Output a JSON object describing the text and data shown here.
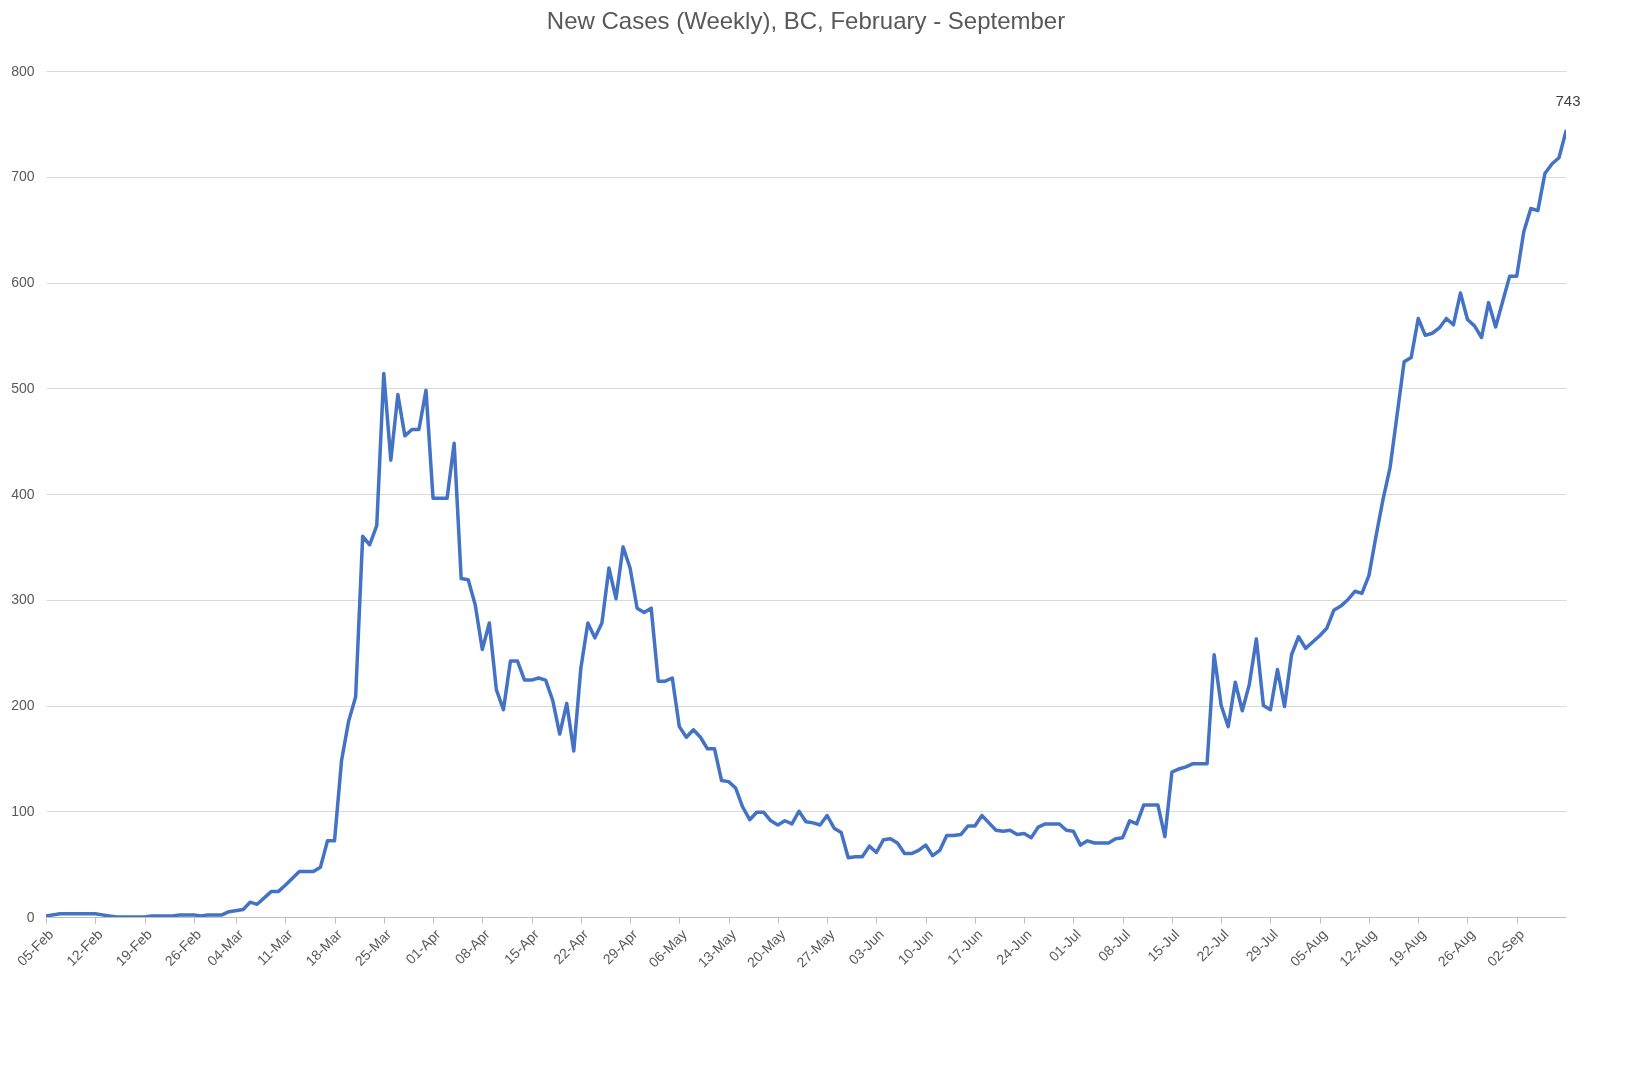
{
  "chart_data": {
    "type": "line",
    "title": "New Cases (Weekly), BC, February - September",
    "x": [
      "--02-05",
      "--02-07",
      "--02-12",
      "--02-13",
      "--02-15",
      "--02-19",
      "--02-20",
      "--02-23",
      "--02-24",
      "--02-26",
      "--02-27",
      "--02-28",
      "--03-02",
      "--03-03",
      "--03-05",
      "--03-06",
      "--03-07",
      "--03-09",
      "--03-10",
      "--03-11",
      "--03-13",
      "--03-14",
      "--03-15",
      "--03-16",
      "--03-17",
      "--03-18",
      "--03-19",
      "--03-20",
      "--03-21",
      "--03-22",
      "--03-23",
      "--03-24",
      "--03-25",
      "--03-26",
      "--03-27",
      "--03-28",
      "--03-29",
      "--03-30",
      "--03-31",
      "--04-01",
      "--04-02",
      "--04-03",
      "--04-04",
      "--04-05",
      "--04-06",
      "--04-07",
      "--04-08",
      "--04-09",
      "--04-10",
      "--04-11",
      "--04-12",
      "--04-13",
      "--04-14",
      "--04-15",
      "--04-16",
      "--04-17",
      "--04-18",
      "--04-19",
      "--04-20",
      "--04-21",
      "--04-22",
      "--04-23",
      "--04-24",
      "--04-25",
      "--04-26",
      "--04-27",
      "--04-28",
      "--04-29",
      "--04-30",
      "--05-01",
      "--05-02",
      "--05-03",
      "--05-04",
      "--05-05",
      "--05-06",
      "--05-07",
      "--05-08",
      "--05-09",
      "--05-10",
      "--05-11",
      "--05-12",
      "--05-13",
      "--05-14",
      "--05-15",
      "--05-16",
      "--05-17",
      "--05-18",
      "--05-19",
      "--05-20",
      "--05-21",
      "--05-22",
      "--05-23",
      "--05-24",
      "--05-25",
      "--05-26",
      "--05-27",
      "--05-28",
      "--05-29",
      "--05-30",
      "--05-31",
      "--06-01",
      "--06-02",
      "--06-03",
      "--06-04",
      "--06-05",
      "--06-06",
      "--06-07",
      "--06-08",
      "--06-09",
      "--06-10",
      "--06-11",
      "--06-12",
      "--06-13",
      "--06-14",
      "--06-15",
      "--06-16",
      "--06-17",
      "--06-18",
      "--06-19",
      "--06-20",
      "--06-21",
      "--06-22",
      "--06-23",
      "--06-24",
      "--06-25",
      "--06-26",
      "--06-27",
      "--06-28",
      "--06-29",
      "--06-30",
      "--07-01",
      "--07-02",
      "--07-03",
      "--07-04",
      "--07-05",
      "--07-06",
      "--07-07",
      "--07-08",
      "--07-09",
      "--07-10",
      "--07-11",
      "--07-12",
      "--07-13",
      "--07-14",
      "--07-15",
      "--07-16",
      "--07-17",
      "--07-18",
      "--07-19",
      "--07-20",
      "--07-21",
      "--07-22",
      "--07-23",
      "--07-24",
      "--07-25",
      "--07-26",
      "--07-27",
      "--07-28",
      "--07-29",
      "--07-30",
      "--07-31",
      "--08-01",
      "--08-02",
      "--08-03",
      "--08-04",
      "--08-05",
      "--08-06",
      "--08-07",
      "--08-08",
      "--08-09",
      "--08-10",
      "--08-11",
      "--08-12",
      "--08-13",
      "--08-14",
      "--08-15",
      "--08-16",
      "--08-17",
      "--08-18",
      "--08-19",
      "--08-20",
      "--08-21",
      "--08-22",
      "--08-23",
      "--08-24",
      "--08-25",
      "--08-26",
      "--08-27",
      "--08-28",
      "--08-29",
      "--08-30",
      "--08-31",
      "--09-01",
      "--09-02",
      "--09-03",
      "--09-04",
      "--09-05",
      "--09-06",
      "--09-07",
      "--09-08",
      "--09-09"
    ],
    "values": [
      1,
      3,
      3,
      2,
      0,
      0,
      1,
      1,
      2,
      2,
      1,
      2,
      2,
      5,
      7,
      14,
      12,
      24,
      24,
      30,
      43,
      43,
      43,
      47,
      72,
      72,
      148,
      185,
      208,
      360,
      352,
      370,
      514,
      432,
      494,
      455,
      461,
      461,
      498,
      396,
      396,
      396,
      448,
      320,
      319,
      295,
      253,
      278,
      215,
      196,
      242,
      242,
      224,
      224,
      226,
      224,
      205,
      173,
      202,
      157,
      235,
      278,
      264,
      278,
      330,
      301,
      350,
      330,
      292,
      288,
      292,
      223,
      223,
      226,
      180,
      170,
      177,
      170,
      159,
      159,
      129,
      128,
      122,
      104,
      92,
      99,
      99,
      91,
      87,
      91,
      88,
      100,
      90,
      89,
      87,
      96,
      84,
      80,
      56,
      57,
      57,
      67,
      61,
      73,
      74,
      70,
      60,
      60,
      63,
      68,
      58,
      63,
      77,
      77,
      78,
      86,
      86,
      96,
      89,
      82,
      81,
      82,
      78,
      79,
      75,
      85,
      88,
      88,
      88,
      82,
      81,
      68,
      72,
      70,
      70,
      70,
      74,
      75,
      91,
      88,
      106,
      106,
      106,
      76,
      137,
      140,
      142,
      145,
      145,
      145,
      248,
      200,
      180,
      222,
      195,
      220,
      263,
      200,
      196,
      234,
      199,
      248,
      265,
      254,
      260,
      266,
      273,
      290,
      294,
      300,
      308,
      306,
      323,
      360,
      395,
      425,
      475,
      525,
      529,
      566,
      550,
      552,
      557,
      566,
      560,
      590,
      565,
      559,
      548,
      581,
      558,
      582,
      606,
      606,
      648,
      670,
      668,
      703,
      712,
      718,
      743
    ],
    "color": "#4472c4",
    "line_style": "solid",
    "marker": "none",
    "xlim": [
      "--02-05",
      "--09-09"
    ],
    "xticks": [
      {
        "value": "--02-05",
        "label": "05-Feb"
      },
      {
        "value": "--02-12",
        "label": "12-Feb"
      },
      {
        "value": "--02-19",
        "label": "19-Feb"
      },
      {
        "value": "--02-26",
        "label": "26-Feb"
      },
      {
        "value": "--03-04",
        "label": "04-Mar"
      },
      {
        "value": "--03-11",
        "label": "11-Mar"
      },
      {
        "value": "--03-18",
        "label": "18-Mar"
      },
      {
        "value": "--03-25",
        "label": "25-Mar"
      },
      {
        "value": "--04-01",
        "label": "01-Apr"
      },
      {
        "value": "--04-08",
        "label": "08-Apr"
      },
      {
        "value": "--04-15",
        "label": "15-Apr"
      },
      {
        "value": "--04-22",
        "label": "22-Apr"
      },
      {
        "value": "--04-29",
        "label": "29-Apr"
      },
      {
        "value": "--05-06",
        "label": "06-May"
      },
      {
        "value": "--05-13",
        "label": "13-May"
      },
      {
        "value": "--05-20",
        "label": "20-May"
      },
      {
        "value": "--05-27",
        "label": "27-May"
      },
      {
        "value": "--06-03",
        "label": "03-Jun"
      },
      {
        "value": "--06-10",
        "label": "10-Jun"
      },
      {
        "value": "--06-17",
        "label": "17-Jun"
      },
      {
        "value": "--06-24",
        "label": "24-Jun"
      },
      {
        "value": "--07-01",
        "label": "01-Jul"
      },
      {
        "value": "--07-08",
        "label": "08-Jul"
      },
      {
        "value": "--07-15",
        "label": "15-Jul"
      },
      {
        "value": "--07-22",
        "label": "22-Jul"
      },
      {
        "value": "--07-29",
        "label": "29-Jul"
      },
      {
        "value": "--08-05",
        "label": "05-Aug"
      },
      {
        "value": "--08-12",
        "label": "12-Aug"
      },
      {
        "value": "--08-19",
        "label": "19-Aug"
      },
      {
        "value": "--08-26",
        "label": "26-Aug"
      },
      {
        "value": "--09-02",
        "label": "02-Sep"
      }
    ],
    "ylim": [
      0,
      800
    ],
    "yticks": [
      0,
      100,
      200,
      300,
      400,
      500,
      600,
      700,
      800
    ],
    "grid": "y",
    "annotations": [
      {
        "text": "743",
        "x": "--09-09",
        "y": 743
      }
    ]
  }
}
